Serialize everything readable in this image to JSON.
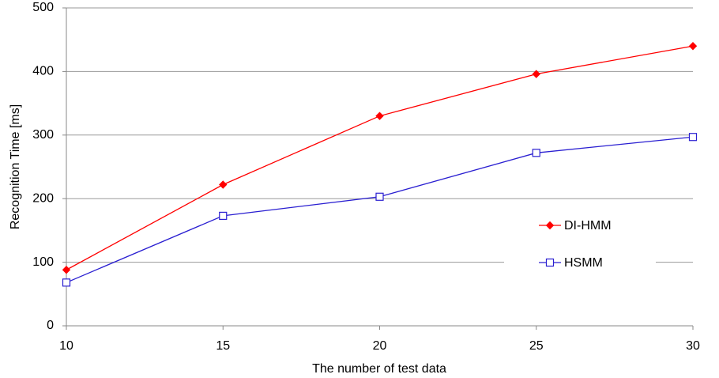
{
  "chart_data": {
    "type": "line",
    "x_label": "The number of test data",
    "y_label": "Recognition Time [ms]",
    "x": [
      10,
      15,
      20,
      25,
      30
    ],
    "series": [
      {
        "name": "DI-HMM",
        "color": "#ff0000",
        "marker": "diamond",
        "values": [
          88,
          222,
          330,
          396,
          440
        ]
      },
      {
        "name": "HSMM",
        "color": "#2a1fd1",
        "marker": "square",
        "values": [
          68,
          173,
          203,
          272,
          297
        ]
      }
    ],
    "xlim": [
      10,
      30
    ],
    "xticks": [
      10,
      15,
      20,
      25,
      30
    ],
    "ylim": [
      0,
      500
    ],
    "yticks": [
      0,
      100,
      200,
      300,
      400,
      500
    ],
    "grid": true,
    "legend": "right"
  }
}
